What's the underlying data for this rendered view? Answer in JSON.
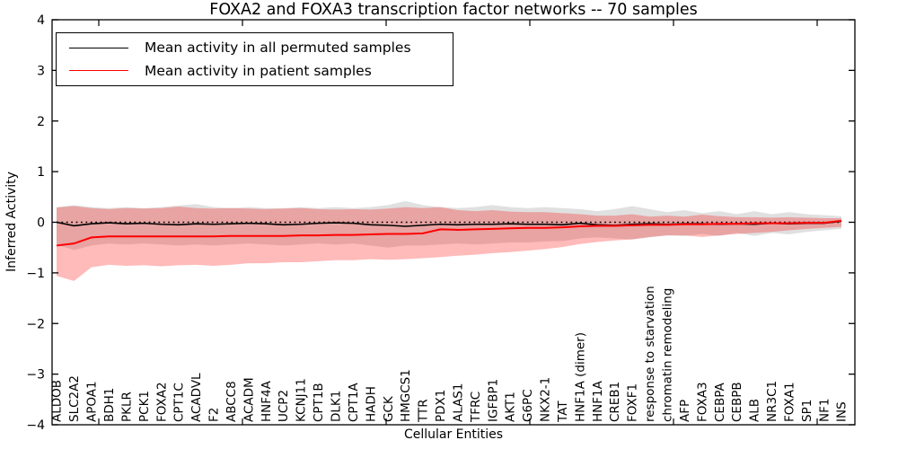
{
  "figure": {
    "title": "FOXA2 and FOXA3 transcription factor networks -- 70 samples",
    "xlabel": "Cellular Entities",
    "ylabel": "Inferred Activity"
  },
  "legend": {
    "position": "upper left",
    "items": [
      {
        "label": "Mean activity in all permuted samples",
        "color": "#000000"
      },
      {
        "label": "Mean activity in patient samples",
        "color": "#ff0000"
      }
    ]
  },
  "chart_data": {
    "type": "line",
    "title": "FOXA2 and FOXA3 transcription factor networks -- 70 samples",
    "xlabel": "Cellular Entities",
    "ylabel": "Inferred Activity",
    "ylim": [
      -4,
      4
    ],
    "yticks": [
      -4,
      -3,
      -2,
      -1,
      0,
      1,
      2,
      3,
      4
    ],
    "yticklabels": [
      "−4",
      "−3",
      "−2",
      "−1",
      "0",
      "1",
      "2",
      "3",
      "4"
    ],
    "grid": false,
    "legend_position": "upper left",
    "x_tick_label_rotation": 90,
    "categories": [
      "ALDOB",
      "SLC2A2",
      "APOA1",
      "BDH1",
      "PKLR",
      "PCK1",
      "FOXA2",
      "CPT1C",
      "ACADVL",
      "F2",
      "ABCC8",
      "ACADM",
      "HNF4A",
      "UCP2",
      "KCNJ11",
      "CPT1B",
      "DLK1",
      "CPT1A",
      "HADH",
      "GCK",
      "HMGCS1",
      "TTR",
      "PDX1",
      "ALAS1",
      "TFRC",
      "IGFBP1",
      "AKT1",
      "G6PC",
      "NKX2-1",
      "TAT",
      "HNF1A (dimer)",
      "HNF1A",
      "CREB1",
      "FOXF1",
      "response to starvation",
      "chromatin remodeling",
      "AFP",
      "FOXA3",
      "CEBPA",
      "CEBPB",
      "ALB",
      "NR3C1",
      "FOXA1",
      "SP1",
      "NF1",
      "INS"
    ],
    "series": [
      {
        "name": "Mean activity in all permuted samples",
        "color": "#000000",
        "style": "solid",
        "width": 1.6,
        "values": [
          0.0,
          -0.07,
          -0.03,
          -0.01,
          -0.03,
          -0.02,
          -0.04,
          -0.05,
          -0.03,
          -0.04,
          -0.03,
          -0.02,
          -0.03,
          -0.05,
          -0.04,
          -0.02,
          -0.01,
          -0.02,
          -0.05,
          -0.06,
          -0.08,
          -0.06,
          -0.04,
          -0.05,
          -0.04,
          -0.04,
          -0.03,
          -0.04,
          -0.04,
          -0.05,
          -0.02,
          -0.05,
          -0.06,
          -0.04,
          -0.03,
          -0.04,
          -0.03,
          -0.03,
          -0.04,
          -0.03,
          -0.04,
          -0.02,
          -0.03,
          -0.02,
          -0.02,
          0.02
        ]
      },
      {
        "name": "Permuted samples median (dotted)",
        "color": "#000000",
        "style": "dotted",
        "width": 1.5,
        "values": [
          0,
          0,
          0,
          0,
          0,
          0,
          0,
          0,
          0,
          0,
          0,
          0,
          0,
          0,
          0,
          0,
          0,
          0,
          0,
          0,
          0,
          0,
          0,
          0,
          0,
          0,
          0,
          0,
          0,
          0,
          0,
          0,
          0,
          0,
          0,
          0,
          0,
          0,
          0,
          0,
          0,
          0,
          0,
          0,
          0,
          0
        ]
      },
      {
        "name": "Mean activity in patient samples",
        "color": "#ff0000",
        "style": "solid",
        "width": 2.0,
        "values": [
          -0.46,
          -0.42,
          -0.3,
          -0.28,
          -0.28,
          -0.28,
          -0.28,
          -0.28,
          -0.28,
          -0.28,
          -0.27,
          -0.27,
          -0.27,
          -0.27,
          -0.26,
          -0.26,
          -0.25,
          -0.25,
          -0.24,
          -0.23,
          -0.23,
          -0.22,
          -0.14,
          -0.15,
          -0.14,
          -0.13,
          -0.12,
          -0.11,
          -0.11,
          -0.1,
          -0.08,
          -0.07,
          -0.07,
          -0.06,
          -0.05,
          -0.05,
          -0.04,
          -0.04,
          -0.03,
          -0.03,
          -0.02,
          -0.02,
          -0.02,
          -0.01,
          -0.01,
          0.03
        ]
      }
    ],
    "bands": [
      {
        "name": "permuted samples range",
        "color": "rgba(0,0,0,0.12)",
        "hi": [
          0.3,
          0.34,
          0.3,
          0.28,
          0.3,
          0.28,
          0.3,
          0.33,
          0.36,
          0.3,
          0.28,
          0.3,
          0.28,
          0.28,
          0.3,
          0.28,
          0.3,
          0.28,
          0.3,
          0.34,
          0.42,
          0.34,
          0.3,
          0.28,
          0.3,
          0.34,
          0.3,
          0.28,
          0.3,
          0.28,
          0.26,
          0.22,
          0.26,
          0.32,
          0.26,
          0.2,
          0.24,
          0.18,
          0.22,
          0.16,
          0.22,
          0.16,
          0.2,
          0.16,
          0.14,
          0.12
        ],
        "lo": [
          -0.44,
          -0.55,
          -0.46,
          -0.42,
          -0.44,
          -0.42,
          -0.44,
          -0.46,
          -0.44,
          -0.46,
          -0.44,
          -0.42,
          -0.44,
          -0.46,
          -0.44,
          -0.42,
          -0.44,
          -0.42,
          -0.46,
          -0.5,
          -0.46,
          -0.46,
          -0.44,
          -0.42,
          -0.44,
          -0.42,
          -0.4,
          -0.4,
          -0.38,
          -0.37,
          -0.32,
          -0.3,
          -0.32,
          -0.34,
          -0.3,
          -0.26,
          -0.27,
          -0.23,
          -0.27,
          -0.21,
          -0.27,
          -0.21,
          -0.24,
          -0.19,
          -0.16,
          -0.13
        ]
      },
      {
        "name": "patient samples range",
        "color": "rgba(255,0,0,0.27)",
        "hi": [
          0.29,
          0.32,
          0.28,
          0.26,
          0.28,
          0.27,
          0.28,
          0.31,
          0.28,
          0.27,
          0.28,
          0.27,
          0.26,
          0.27,
          0.28,
          0.26,
          0.25,
          0.26,
          0.25,
          0.27,
          0.3,
          0.28,
          0.3,
          0.24,
          0.22,
          0.24,
          0.21,
          0.2,
          0.2,
          0.18,
          0.16,
          0.13,
          0.13,
          0.16,
          0.11,
          0.13,
          0.11,
          0.15,
          0.12,
          0.1,
          0.1,
          0.09,
          0.1,
          0.09,
          0.08,
          0.08
        ],
        "lo": [
          -1.06,
          -1.16,
          -0.89,
          -0.84,
          -0.86,
          -0.85,
          -0.87,
          -0.85,
          -0.84,
          -0.86,
          -0.84,
          -0.81,
          -0.81,
          -0.79,
          -0.79,
          -0.77,
          -0.75,
          -0.75,
          -0.73,
          -0.74,
          -0.73,
          -0.71,
          -0.69,
          -0.66,
          -0.64,
          -0.61,
          -0.59,
          -0.56,
          -0.53,
          -0.49,
          -0.43,
          -0.39,
          -0.36,
          -0.34,
          -0.29,
          -0.26,
          -0.26,
          -0.29,
          -0.26,
          -0.23,
          -0.21,
          -0.19,
          -0.16,
          -0.13,
          -0.11,
          -0.09
        ]
      }
    ]
  },
  "colors": {
    "permuted_line": "#000000",
    "patient_line": "#ff0000",
    "axis": "#000000",
    "background": "#ffffff"
  }
}
